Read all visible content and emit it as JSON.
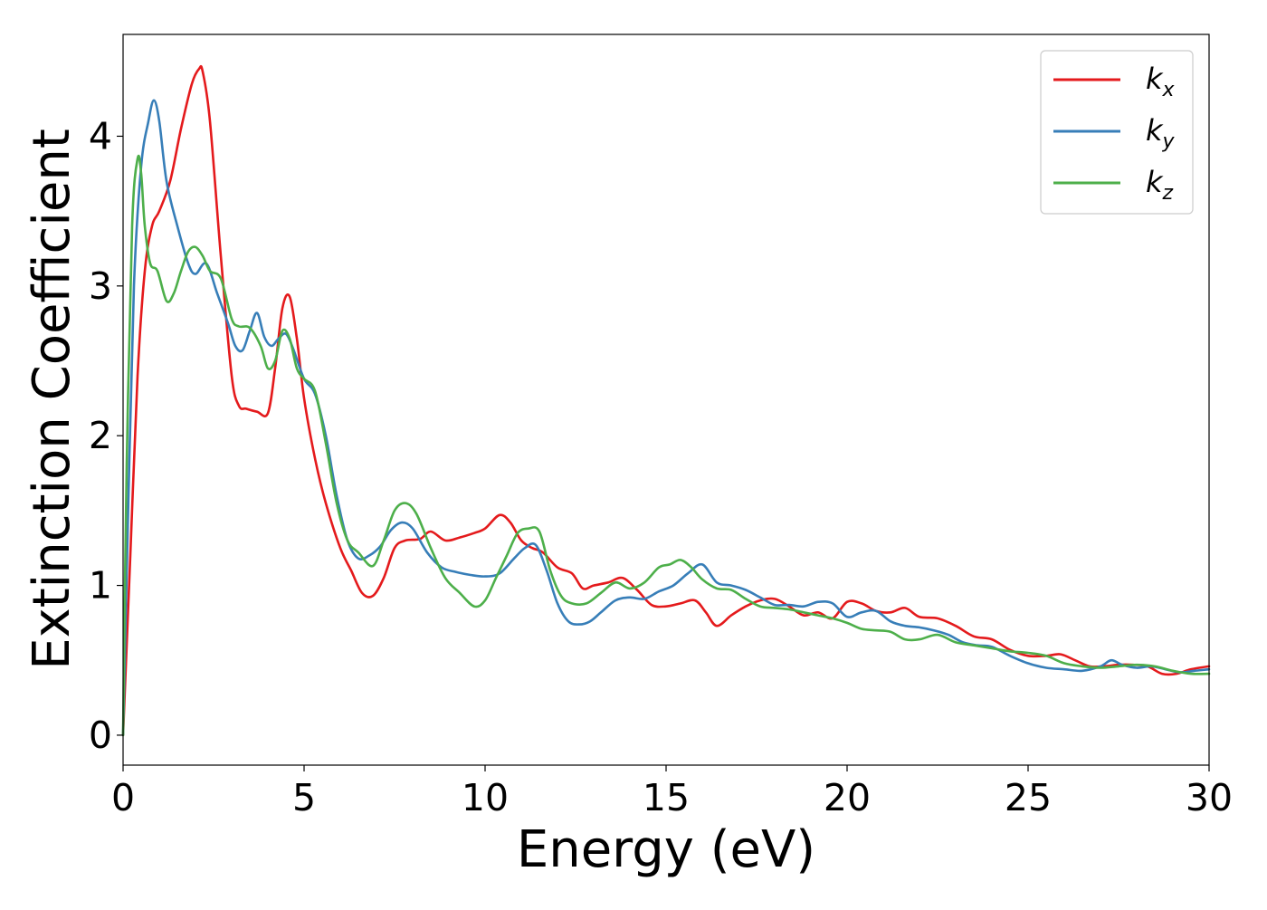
{
  "chart_data": {
    "type": "line",
    "xlabel": "Energy (eV)",
    "ylabel": "Extinction Coefficient",
    "xlim": [
      0,
      30
    ],
    "ylim": [
      -0.2,
      4.68
    ],
    "xticks": [
      "0",
      "5",
      "10",
      "15",
      "20",
      "25",
      "30"
    ],
    "yticks": [
      "0",
      "1",
      "2",
      "3",
      "4"
    ],
    "grid": false,
    "legend_position": "top-right",
    "series": [
      {
        "name": "k",
        "subscript": "x",
        "color": "#e41a1c",
        "x": [
          0,
          0.2,
          0.4,
          0.6,
          0.8,
          1.0,
          1.3,
          1.6,
          1.9,
          2.1,
          2.2,
          2.4,
          2.7,
          3.0,
          3.2,
          3.4,
          3.7,
          4.0,
          4.2,
          4.4,
          4.6,
          4.8,
          5.0,
          5.3,
          5.6,
          6.0,
          6.3,
          6.6,
          6.9,
          7.2,
          7.5,
          7.8,
          8.2,
          8.5,
          8.9,
          9.3,
          9.7,
          10.0,
          10.4,
          10.7,
          11.0,
          11.3,
          11.6,
          12.0,
          12.4,
          12.7,
          13.0,
          13.4,
          13.8,
          14.2,
          14.6,
          15.0,
          15.4,
          15.8,
          16.1,
          16.4,
          16.8,
          17.2,
          17.6,
          18.0,
          18.4,
          18.8,
          19.2,
          19.6,
          20.0,
          20.4,
          20.8,
          21.2,
          21.6,
          22.0,
          22.5,
          23.0,
          23.5,
          24.0,
          24.5,
          25.0,
          25.5,
          25.9,
          26.3,
          26.7,
          27.1,
          27.5,
          27.9,
          28.3,
          28.7,
          29.1,
          29.5,
          30.0
        ],
        "values": [
          0,
          1.2,
          2.4,
          3.1,
          3.4,
          3.5,
          3.7,
          4.05,
          4.35,
          4.45,
          4.43,
          4.1,
          3.2,
          2.4,
          2.2,
          2.18,
          2.16,
          2.15,
          2.45,
          2.85,
          2.93,
          2.65,
          2.25,
          1.85,
          1.55,
          1.25,
          1.1,
          0.95,
          0.93,
          1.05,
          1.25,
          1.3,
          1.31,
          1.36,
          1.3,
          1.32,
          1.35,
          1.38,
          1.47,
          1.42,
          1.3,
          1.25,
          1.22,
          1.12,
          1.08,
          0.98,
          1.0,
          1.02,
          1.05,
          0.97,
          0.87,
          0.86,
          0.88,
          0.9,
          0.82,
          0.73,
          0.8,
          0.86,
          0.9,
          0.91,
          0.86,
          0.8,
          0.82,
          0.78,
          0.89,
          0.88,
          0.83,
          0.82,
          0.85,
          0.79,
          0.78,
          0.73,
          0.66,
          0.64,
          0.57,
          0.53,
          0.53,
          0.54,
          0.5,
          0.46,
          0.46,
          0.47,
          0.47,
          0.46,
          0.41,
          0.41,
          0.44,
          0.46
        ]
      },
      {
        "name": "k",
        "subscript": "y",
        "color": "#377eb8",
        "x": [
          0,
          0.15,
          0.3,
          0.5,
          0.7,
          0.85,
          1.0,
          1.2,
          1.5,
          1.8,
          2.0,
          2.3,
          2.6,
          2.9,
          3.1,
          3.3,
          3.5,
          3.7,
          3.9,
          4.1,
          4.3,
          4.5,
          4.7,
          5.0,
          5.3,
          5.6,
          5.9,
          6.2,
          6.5,
          6.8,
          7.1,
          7.4,
          7.7,
          8.0,
          8.4,
          8.8,
          9.2,
          9.6,
          10.0,
          10.4,
          10.8,
          11.1,
          11.4,
          11.7,
          12.0,
          12.3,
          12.6,
          12.9,
          13.2,
          13.6,
          14.0,
          14.4,
          14.8,
          15.2,
          15.6,
          16.0,
          16.4,
          16.8,
          17.2,
          17.6,
          18.0,
          18.4,
          18.8,
          19.2,
          19.6,
          20.0,
          20.4,
          20.8,
          21.2,
          21.6,
          22.0,
          22.4,
          22.8,
          23.2,
          23.6,
          24.0,
          24.5,
          25.0,
          25.5,
          26.0,
          26.5,
          27.0,
          27.3,
          27.6,
          28.0,
          28.4,
          28.8,
          29.2,
          29.6,
          30.0
        ],
        "values": [
          0,
          1.6,
          3.0,
          3.8,
          4.1,
          4.24,
          4.1,
          3.7,
          3.4,
          3.15,
          3.08,
          3.15,
          2.95,
          2.75,
          2.6,
          2.57,
          2.7,
          2.82,
          2.66,
          2.6,
          2.65,
          2.68,
          2.58,
          2.38,
          2.28,
          2.0,
          1.6,
          1.3,
          1.18,
          1.2,
          1.26,
          1.37,
          1.42,
          1.38,
          1.22,
          1.12,
          1.09,
          1.07,
          1.06,
          1.08,
          1.18,
          1.25,
          1.27,
          1.1,
          0.88,
          0.76,
          0.74,
          0.76,
          0.82,
          0.9,
          0.92,
          0.91,
          0.96,
          1.0,
          1.08,
          1.14,
          1.02,
          1.0,
          0.97,
          0.92,
          0.87,
          0.87,
          0.86,
          0.89,
          0.88,
          0.79,
          0.82,
          0.83,
          0.76,
          0.73,
          0.72,
          0.7,
          0.67,
          0.62,
          0.6,
          0.59,
          0.53,
          0.48,
          0.45,
          0.44,
          0.43,
          0.46,
          0.5,
          0.47,
          0.45,
          0.46,
          0.44,
          0.42,
          0.43,
          0.44
        ]
      },
      {
        "name": "k",
        "subscript": "z",
        "color": "#4daf4a",
        "x": [
          0,
          0.1,
          0.25,
          0.4,
          0.5,
          0.6,
          0.75,
          0.95,
          1.2,
          1.4,
          1.6,
          1.8,
          2.0,
          2.2,
          2.4,
          2.7,
          3.0,
          3.2,
          3.5,
          3.8,
          4.0,
          4.2,
          4.4,
          4.6,
          4.8,
          5.0,
          5.3,
          5.6,
          5.9,
          6.2,
          6.5,
          6.9,
          7.2,
          7.5,
          7.8,
          8.1,
          8.5,
          8.9,
          9.3,
          9.7,
          10.0,
          10.3,
          10.6,
          10.9,
          11.2,
          11.5,
          11.8,
          12.1,
          12.4,
          12.8,
          13.2,
          13.6,
          14.0,
          14.4,
          14.8,
          15.1,
          15.4,
          15.7,
          16.0,
          16.4,
          16.8,
          17.2,
          17.6,
          18.0,
          18.4,
          18.8,
          19.2,
          19.6,
          20.0,
          20.4,
          20.8,
          21.2,
          21.6,
          22.0,
          22.5,
          23.0,
          23.5,
          24.0,
          24.5,
          25.0,
          25.5,
          26.0,
          26.5,
          27.0,
          27.5,
          28.0,
          28.5,
          29.0,
          29.5,
          30.0
        ],
        "values": [
          0,
          1.8,
          3.4,
          3.85,
          3.75,
          3.4,
          3.15,
          3.1,
          2.9,
          2.95,
          3.1,
          3.23,
          3.26,
          3.2,
          3.1,
          3.05,
          2.78,
          2.73,
          2.72,
          2.6,
          2.45,
          2.5,
          2.7,
          2.65,
          2.45,
          2.38,
          2.3,
          1.95,
          1.55,
          1.3,
          1.22,
          1.13,
          1.3,
          1.5,
          1.55,
          1.48,
          1.25,
          1.05,
          0.95,
          0.86,
          0.9,
          1.05,
          1.2,
          1.35,
          1.38,
          1.36,
          1.1,
          0.93,
          0.88,
          0.88,
          0.95,
          1.02,
          0.98,
          1.02,
          1.12,
          1.14,
          1.17,
          1.12,
          1.04,
          0.98,
          0.97,
          0.91,
          0.86,
          0.85,
          0.84,
          0.82,
          0.8,
          0.78,
          0.75,
          0.71,
          0.7,
          0.69,
          0.64,
          0.64,
          0.67,
          0.62,
          0.6,
          0.58,
          0.56,
          0.55,
          0.53,
          0.48,
          0.46,
          0.45,
          0.46,
          0.47,
          0.46,
          0.43,
          0.41,
          0.41
        ]
      }
    ]
  }
}
